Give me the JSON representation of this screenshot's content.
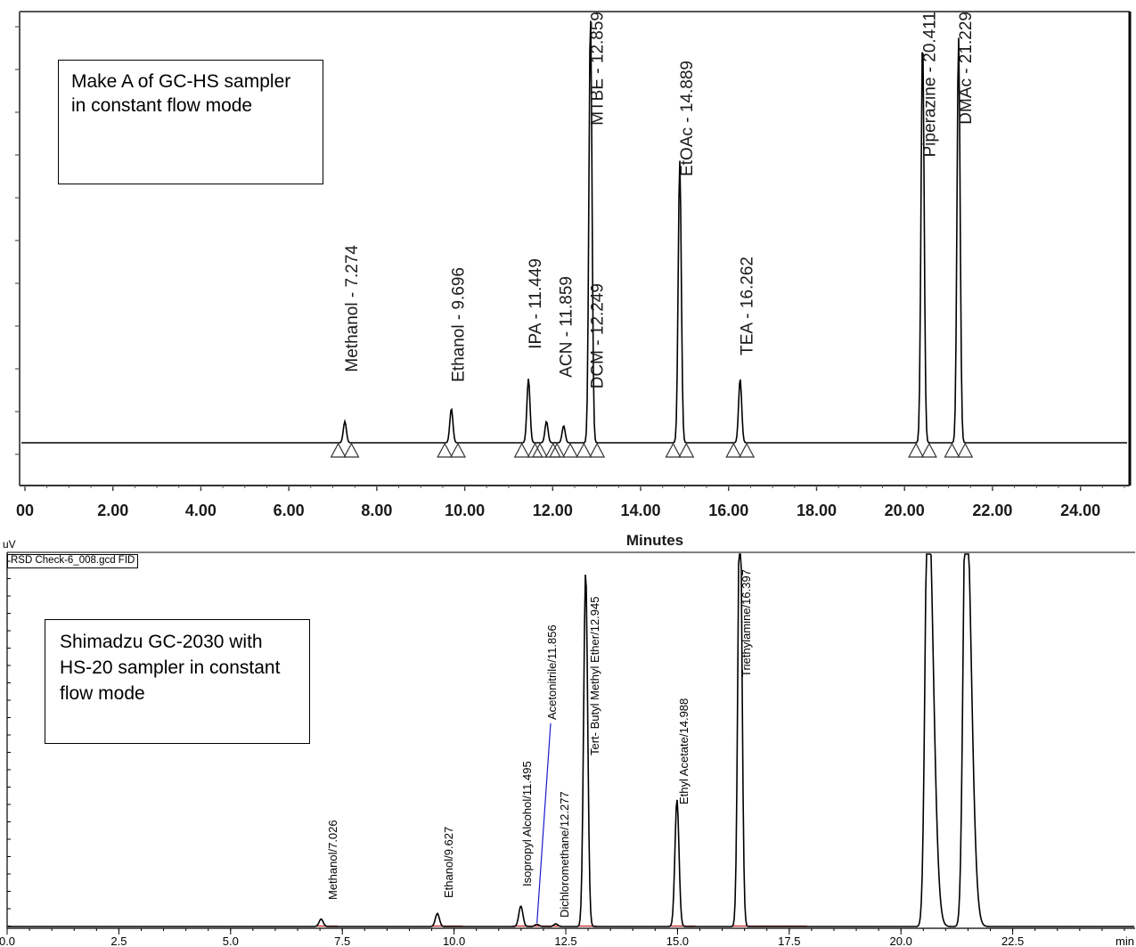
{
  "chart_data": [
    {
      "type": "line",
      "xlabel": "Minutes",
      "ylabel": "",
      "xlim": [
        0,
        25
      ],
      "x_ticks": [
        "00",
        "2.00",
        "4.00",
        "6.00",
        "8.00",
        "10.00",
        "12.00",
        "14.00",
        "16.00",
        "18.00",
        "20.00",
        "22.00",
        "24.00"
      ],
      "x_tick_values": [
        0,
        2,
        4,
        6,
        8,
        10,
        12,
        14,
        16,
        18,
        20,
        22,
        24
      ],
      "annotation": "Make A of GC-HS sampler in constant flow mode",
      "peak_labels": [
        {
          "text": "Methanol - 7.274",
          "x": 7.274
        },
        {
          "text": "Ethanol - 9.696",
          "x": 9.696
        },
        {
          "text": "IPA - 11.449",
          "x": 11.449
        },
        {
          "text": "ACN - 11.859",
          "x": 11.859
        },
        {
          "text": "DCM - 12.249",
          "x": 12.249
        },
        {
          "text": "MTBE - 12.859",
          "x": 12.859
        },
        {
          "text": "EtOAc - 14.889",
          "x": 14.889
        },
        {
          "text": "TEA - 16.262",
          "x": 16.262
        },
        {
          "text": "Piperazine - 20.411",
          "x": 20.411
        },
        {
          "text": "DMAc - 21.229",
          "x": 21.229
        }
      ],
      "peaks": [
        {
          "rt": 7.274,
          "height": 0.05
        },
        {
          "rt": 9.696,
          "height": 0.08
        },
        {
          "rt": 11.449,
          "height": 0.15
        },
        {
          "rt": 11.859,
          "height": 0.05
        },
        {
          "rt": 12.249,
          "height": 0.04
        },
        {
          "rt": 12.859,
          "height": 1.0
        },
        {
          "rt": 14.889,
          "height": 0.66
        },
        {
          "rt": 16.262,
          "height": 0.15
        },
        {
          "rt": 20.411,
          "height": 0.95
        },
        {
          "rt": 21.229,
          "height": 0.95
        }
      ]
    },
    {
      "type": "line",
      "xlabel": "min",
      "ylabel": "uV",
      "xlim": [
        0,
        25
      ],
      "x_ticks": [
        "0.0",
        "2.5",
        "5.0",
        "7.5",
        "10.0",
        "12.5",
        "15.0",
        "17.5",
        "20.0",
        "22.5"
      ],
      "x_tick_values": [
        0,
        2.5,
        5,
        7.5,
        10,
        12.5,
        15,
        17.5,
        20,
        22.5
      ],
      "file_tag": "RSD Check-6_008.gcd FID",
      "annotation": "Shimadzu GC-2030 with HS-20 sampler in constant flow mode",
      "peak_labels": [
        {
          "text": "Methanol/7.026",
          "x": 7.026
        },
        {
          "text": "Ethanol/9.627",
          "x": 9.627
        },
        {
          "text": "Isopropyl  Alcohol/11.495",
          "x": 11.495
        },
        {
          "text": "Acetonitrile/11.856",
          "x": 11.856
        },
        {
          "text": "Dichloromethane/12.277",
          "x": 12.277
        },
        {
          "text": "Tert- Butyl Methyl Ether/12.945",
          "x": 12.945
        },
        {
          "text": "Ethyl  Acetate/14.988",
          "x": 14.988
        },
        {
          "text": "Triethylamine/16.397",
          "x": 16.397
        }
      ],
      "peaks": [
        {
          "rt": 7.026,
          "height": 0.02
        },
        {
          "rt": 9.627,
          "height": 0.035
        },
        {
          "rt": 11.495,
          "height": 0.055
        },
        {
          "rt": 11.856,
          "height": 0.006
        },
        {
          "rt": 12.277,
          "height": 0.007
        },
        {
          "rt": 12.945,
          "height": 0.95
        },
        {
          "rt": 14.988,
          "height": 0.34
        },
        {
          "rt": 16.397,
          "height": 1.2
        },
        {
          "rt": 20.6,
          "height": 1.2
        },
        {
          "rt": 21.45,
          "height": 1.2
        }
      ]
    }
  ],
  "colors": {
    "trace": "#000000",
    "baseline_marker": "#cc2222",
    "leader_line": "#1a1acc"
  }
}
